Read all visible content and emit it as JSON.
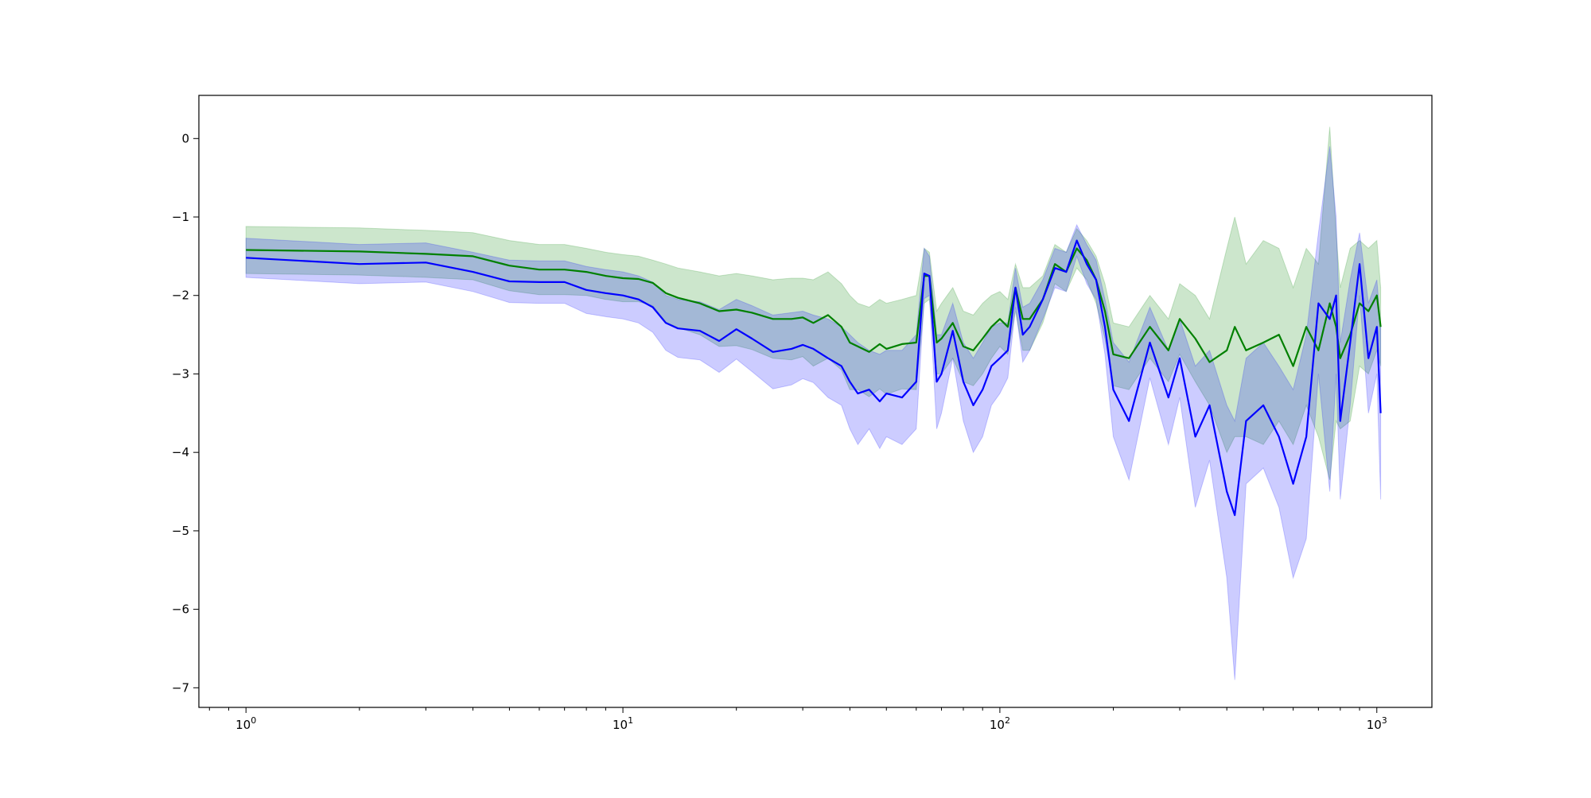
{
  "chart_data": {
    "type": "line",
    "title": "",
    "xlabel": "",
    "ylabel": "",
    "xscale": "log",
    "xlim": [
      0.75,
      1400
    ],
    "ylim": [
      -7.25,
      0.55
    ],
    "grid": false,
    "legend": "none",
    "x_ticks": [
      {
        "value": 1,
        "base": "10",
        "exp": "0"
      },
      {
        "value": 10,
        "base": "10",
        "exp": "1"
      },
      {
        "value": 100,
        "base": "10",
        "exp": "2"
      },
      {
        "value": 1000,
        "base": "10",
        "exp": "3"
      }
    ],
    "y_ticks": [
      {
        "value": 0,
        "label": "0"
      },
      {
        "value": -1,
        "label": "−1"
      },
      {
        "value": -2,
        "label": "−2"
      },
      {
        "value": -3,
        "label": "−3"
      },
      {
        "value": -4,
        "label": "−4"
      },
      {
        "value": -5,
        "label": "−5"
      },
      {
        "value": -6,
        "label": "−6"
      },
      {
        "value": -7,
        "label": "−7"
      }
    ],
    "series": [
      {
        "color": "#008000",
        "band_color": "#008000",
        "band_opacity": 0.2,
        "x": [
          1,
          2,
          3,
          4,
          5,
          6,
          7,
          8,
          9,
          10,
          11,
          12,
          13,
          14,
          16,
          18,
          20,
          22,
          25,
          28,
          30,
          32,
          35,
          38,
          40,
          42,
          45,
          48,
          50,
          55,
          60,
          63,
          65,
          68,
          70,
          75,
          80,
          85,
          90,
          95,
          100,
          105,
          110,
          115,
          120,
          130,
          140,
          150,
          160,
          170,
          180,
          190,
          200,
          220,
          250,
          280,
          300,
          330,
          360,
          400,
          420,
          450,
          500,
          550,
          600,
          650,
          700,
          750,
          780,
          800,
          850,
          900,
          950,
          1000,
          1024
        ],
        "y": [
          -1.42,
          -1.44,
          -1.47,
          -1.5,
          -1.62,
          -1.67,
          -1.67,
          -1.7,
          -1.75,
          -1.78,
          -1.79,
          -1.84,
          -1.97,
          -2.03,
          -2.1,
          -2.2,
          -2.18,
          -2.22,
          -2.3,
          -2.3,
          -2.28,
          -2.35,
          -2.25,
          -2.4,
          -2.6,
          -2.65,
          -2.72,
          -2.62,
          -2.68,
          -2.62,
          -2.6,
          -1.75,
          -1.75,
          -2.6,
          -2.55,
          -2.35,
          -2.65,
          -2.7,
          -2.55,
          -2.4,
          -2.3,
          -2.4,
          -1.9,
          -2.3,
          -2.3,
          -2.05,
          -1.6,
          -1.7,
          -1.4,
          -1.55,
          -1.8,
          -2.2,
          -2.75,
          -2.8,
          -2.4,
          -2.7,
          -2.3,
          -2.55,
          -2.85,
          -2.7,
          -2.4,
          -2.7,
          -2.6,
          -2.5,
          -2.9,
          -2.4,
          -2.7,
          -2.1,
          -2.4,
          -2.8,
          -2.5,
          -2.1,
          -2.2,
          -2.0,
          -2.4
        ],
        "upper": [
          -1.12,
          -1.14,
          -1.17,
          -1.2,
          -1.3,
          -1.35,
          -1.35,
          -1.4,
          -1.45,
          -1.48,
          -1.5,
          -1.55,
          -1.6,
          -1.65,
          -1.7,
          -1.75,
          -1.72,
          -1.75,
          -1.8,
          -1.78,
          -1.78,
          -1.8,
          -1.7,
          -1.85,
          -2.0,
          -2.1,
          -2.15,
          -2.05,
          -2.1,
          -2.05,
          -2.0,
          -1.4,
          -1.45,
          -2.2,
          -2.1,
          -1.9,
          -2.2,
          -2.25,
          -2.1,
          -2.0,
          -1.95,
          -2.05,
          -1.6,
          -1.9,
          -1.9,
          -1.75,
          -1.35,
          -1.45,
          -1.15,
          -1.3,
          -1.5,
          -1.85,
          -2.35,
          -2.4,
          -2.0,
          -2.3,
          -1.85,
          -2.0,
          -2.3,
          -1.4,
          -1.0,
          -1.6,
          -1.3,
          -1.4,
          -1.9,
          -1.4,
          -1.6,
          0.15,
          -1.2,
          -1.9,
          -1.4,
          -1.3,
          -1.4,
          -1.3,
          -1.9
        ],
        "lower": [
          -1.72,
          -1.74,
          -1.77,
          -1.8,
          -1.94,
          -1.99,
          -1.99,
          -2.0,
          -2.05,
          -2.08,
          -2.08,
          -2.13,
          -2.34,
          -2.41,
          -2.5,
          -2.65,
          -2.64,
          -2.69,
          -2.8,
          -2.82,
          -2.78,
          -2.9,
          -2.8,
          -2.95,
          -3.2,
          -3.2,
          -3.29,
          -3.19,
          -3.26,
          -3.19,
          -3.2,
          -2.1,
          -2.05,
          -3.0,
          -3.0,
          -2.8,
          -3.1,
          -3.15,
          -3.0,
          -2.8,
          -2.65,
          -2.75,
          -2.2,
          -2.7,
          -2.7,
          -2.35,
          -1.85,
          -1.95,
          -1.65,
          -1.8,
          -2.1,
          -2.55,
          -3.15,
          -3.2,
          -2.8,
          -3.1,
          -2.75,
          -3.1,
          -3.4,
          -4.0,
          -3.8,
          -3.8,
          -3.9,
          -3.6,
          -3.9,
          -3.4,
          -3.8,
          -4.35,
          -3.6,
          -3.7,
          -3.6,
          -2.9,
          -3.0,
          -2.7,
          -2.9
        ]
      },
      {
        "color": "#0000ff",
        "band_color": "#0000ff",
        "band_opacity": 0.2,
        "x": [
          1,
          2,
          3,
          4,
          5,
          6,
          7,
          8,
          9,
          10,
          11,
          12,
          13,
          14,
          16,
          18,
          20,
          22,
          25,
          28,
          30,
          32,
          35,
          38,
          40,
          42,
          45,
          48,
          50,
          55,
          60,
          63,
          65,
          68,
          70,
          75,
          80,
          85,
          90,
          95,
          100,
          105,
          110,
          115,
          120,
          130,
          140,
          150,
          160,
          170,
          180,
          190,
          200,
          220,
          250,
          280,
          300,
          330,
          360,
          400,
          420,
          450,
          500,
          550,
          600,
          650,
          700,
          750,
          780,
          800,
          850,
          900,
          950,
          1000,
          1024
        ],
        "y": [
          -1.52,
          -1.6,
          -1.58,
          -1.7,
          -1.82,
          -1.83,
          -1.83,
          -1.93,
          -1.97,
          -2.0,
          -2.05,
          -2.15,
          -2.35,
          -2.42,
          -2.45,
          -2.58,
          -2.43,
          -2.55,
          -2.72,
          -2.68,
          -2.63,
          -2.68,
          -2.8,
          -2.9,
          -3.1,
          -3.25,
          -3.2,
          -3.35,
          -3.25,
          -3.3,
          -3.1,
          -1.72,
          -1.75,
          -3.1,
          -3.0,
          -2.45,
          -3.1,
          -3.4,
          -3.2,
          -2.9,
          -2.8,
          -2.7,
          -1.9,
          -2.5,
          -2.4,
          -2.05,
          -1.65,
          -1.7,
          -1.3,
          -1.6,
          -1.8,
          -2.4,
          -3.2,
          -3.6,
          -2.6,
          -3.3,
          -2.8,
          -3.8,
          -3.4,
          -4.5,
          -4.8,
          -3.6,
          -3.4,
          -3.8,
          -4.4,
          -3.8,
          -2.1,
          -2.3,
          -2.0,
          -3.6,
          -2.6,
          -1.6,
          -2.8,
          -2.4,
          -3.5
        ],
        "upper": [
          -1.27,
          -1.35,
          -1.33,
          -1.45,
          -1.55,
          -1.56,
          -1.56,
          -1.63,
          -1.67,
          -1.7,
          -1.75,
          -1.83,
          -2.0,
          -2.05,
          -2.08,
          -2.18,
          -2.05,
          -2.13,
          -2.25,
          -2.22,
          -2.2,
          -2.25,
          -2.3,
          -2.4,
          -2.5,
          -2.6,
          -2.7,
          -2.75,
          -2.7,
          -2.7,
          -2.5,
          -1.4,
          -1.5,
          -2.5,
          -2.5,
          -2.1,
          -2.6,
          -2.8,
          -2.6,
          -2.4,
          -2.35,
          -2.35,
          -1.65,
          -2.15,
          -2.1,
          -1.8,
          -1.4,
          -1.45,
          -1.1,
          -1.35,
          -1.55,
          -2.05,
          -2.6,
          -2.85,
          -2.15,
          -2.7,
          -2.3,
          -2.9,
          -2.7,
          -3.4,
          -3.6,
          -2.8,
          -2.6,
          -2.9,
          -3.2,
          -2.5,
          -1.2,
          -0.1,
          -1.0,
          -2.6,
          -1.8,
          -1.2,
          -2.1,
          -1.8,
          -2.4
        ],
        "lower": [
          -1.77,
          -1.85,
          -1.83,
          -1.95,
          -2.09,
          -2.1,
          -2.1,
          -2.23,
          -2.27,
          -2.3,
          -2.35,
          -2.47,
          -2.7,
          -2.79,
          -2.82,
          -2.98,
          -2.81,
          -2.97,
          -3.19,
          -3.14,
          -3.06,
          -3.11,
          -3.3,
          -3.4,
          -3.7,
          -3.9,
          -3.7,
          -3.95,
          -3.8,
          -3.9,
          -3.7,
          -2.04,
          -2.0,
          -3.7,
          -3.5,
          -2.8,
          -3.6,
          -4.0,
          -3.8,
          -3.4,
          -3.25,
          -3.05,
          -2.15,
          -2.85,
          -2.7,
          -2.3,
          -1.9,
          -1.95,
          -1.5,
          -1.85,
          -2.05,
          -2.75,
          -3.8,
          -4.35,
          -3.05,
          -3.9,
          -3.3,
          -4.7,
          -4.1,
          -5.6,
          -6.9,
          -4.4,
          -4.2,
          -4.7,
          -5.6,
          -5.1,
          -3.0,
          -4.5,
          -3.0,
          -4.6,
          -3.4,
          -2.0,
          -3.5,
          -3.0,
          -4.6
        ]
      }
    ]
  }
}
